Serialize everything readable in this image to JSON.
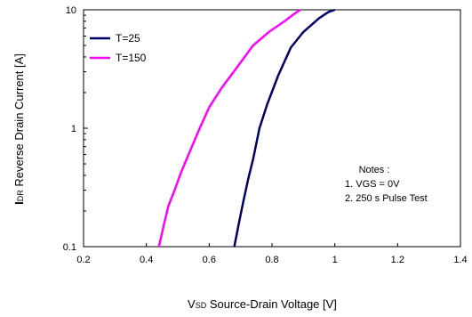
{
  "chart_data": {
    "type": "line",
    "title": "",
    "xlabel_sub": "V",
    "xlabel_subscript": "SD",
    "xlabel_rest": " Source-Drain Voltage [V]",
    "ylabel_sub": "I",
    "ylabel_subscript": "DR",
    "ylabel_rest": " Reverse Drain Current [A]",
    "xlim": [
      0.2,
      1.4
    ],
    "ylim": [
      0.1,
      10
    ],
    "yscale": "log",
    "xticks": [
      0.2,
      0.4,
      0.6,
      0.8,
      1.0,
      1.2,
      1.4
    ],
    "xtick_labels": [
      "0.2",
      "0.4",
      "0.6",
      "0.8",
      "1",
      "1.2",
      "1.4"
    ],
    "yticks": [
      0.1,
      1,
      10
    ],
    "ytick_labels": [
      "0.1",
      "1",
      "10"
    ],
    "grid": "none",
    "legend_position": "top-left",
    "series": [
      {
        "name": "T=25",
        "color": "#000066",
        "x": [
          0.68,
          0.695,
          0.71,
          0.725,
          0.74,
          0.76,
          0.785,
          0.82,
          0.86,
          0.9,
          0.95,
          0.98,
          1.0
        ],
        "y": [
          0.1,
          0.16,
          0.25,
          0.38,
          0.55,
          1.0,
          1.6,
          2.8,
          4.8,
          6.5,
          8.5,
          9.6,
          10
        ]
      },
      {
        "name": "T=150",
        "color": "#ff00ff",
        "x": [
          0.44,
          0.455,
          0.47,
          0.49,
          0.51,
          0.54,
          0.57,
          0.6,
          0.64,
          0.69,
          0.74,
          0.79,
          0.84,
          0.87,
          0.89
        ],
        "y": [
          0.1,
          0.15,
          0.22,
          0.3,
          0.42,
          0.65,
          1.0,
          1.5,
          2.2,
          3.3,
          5.0,
          6.5,
          8.0,
          9.2,
          10
        ]
      }
    ],
    "notes": {
      "title": "Notes :",
      "lines": [
        "1. VGS = 0V",
        "2. 250 s Pulse Test"
      ]
    }
  }
}
